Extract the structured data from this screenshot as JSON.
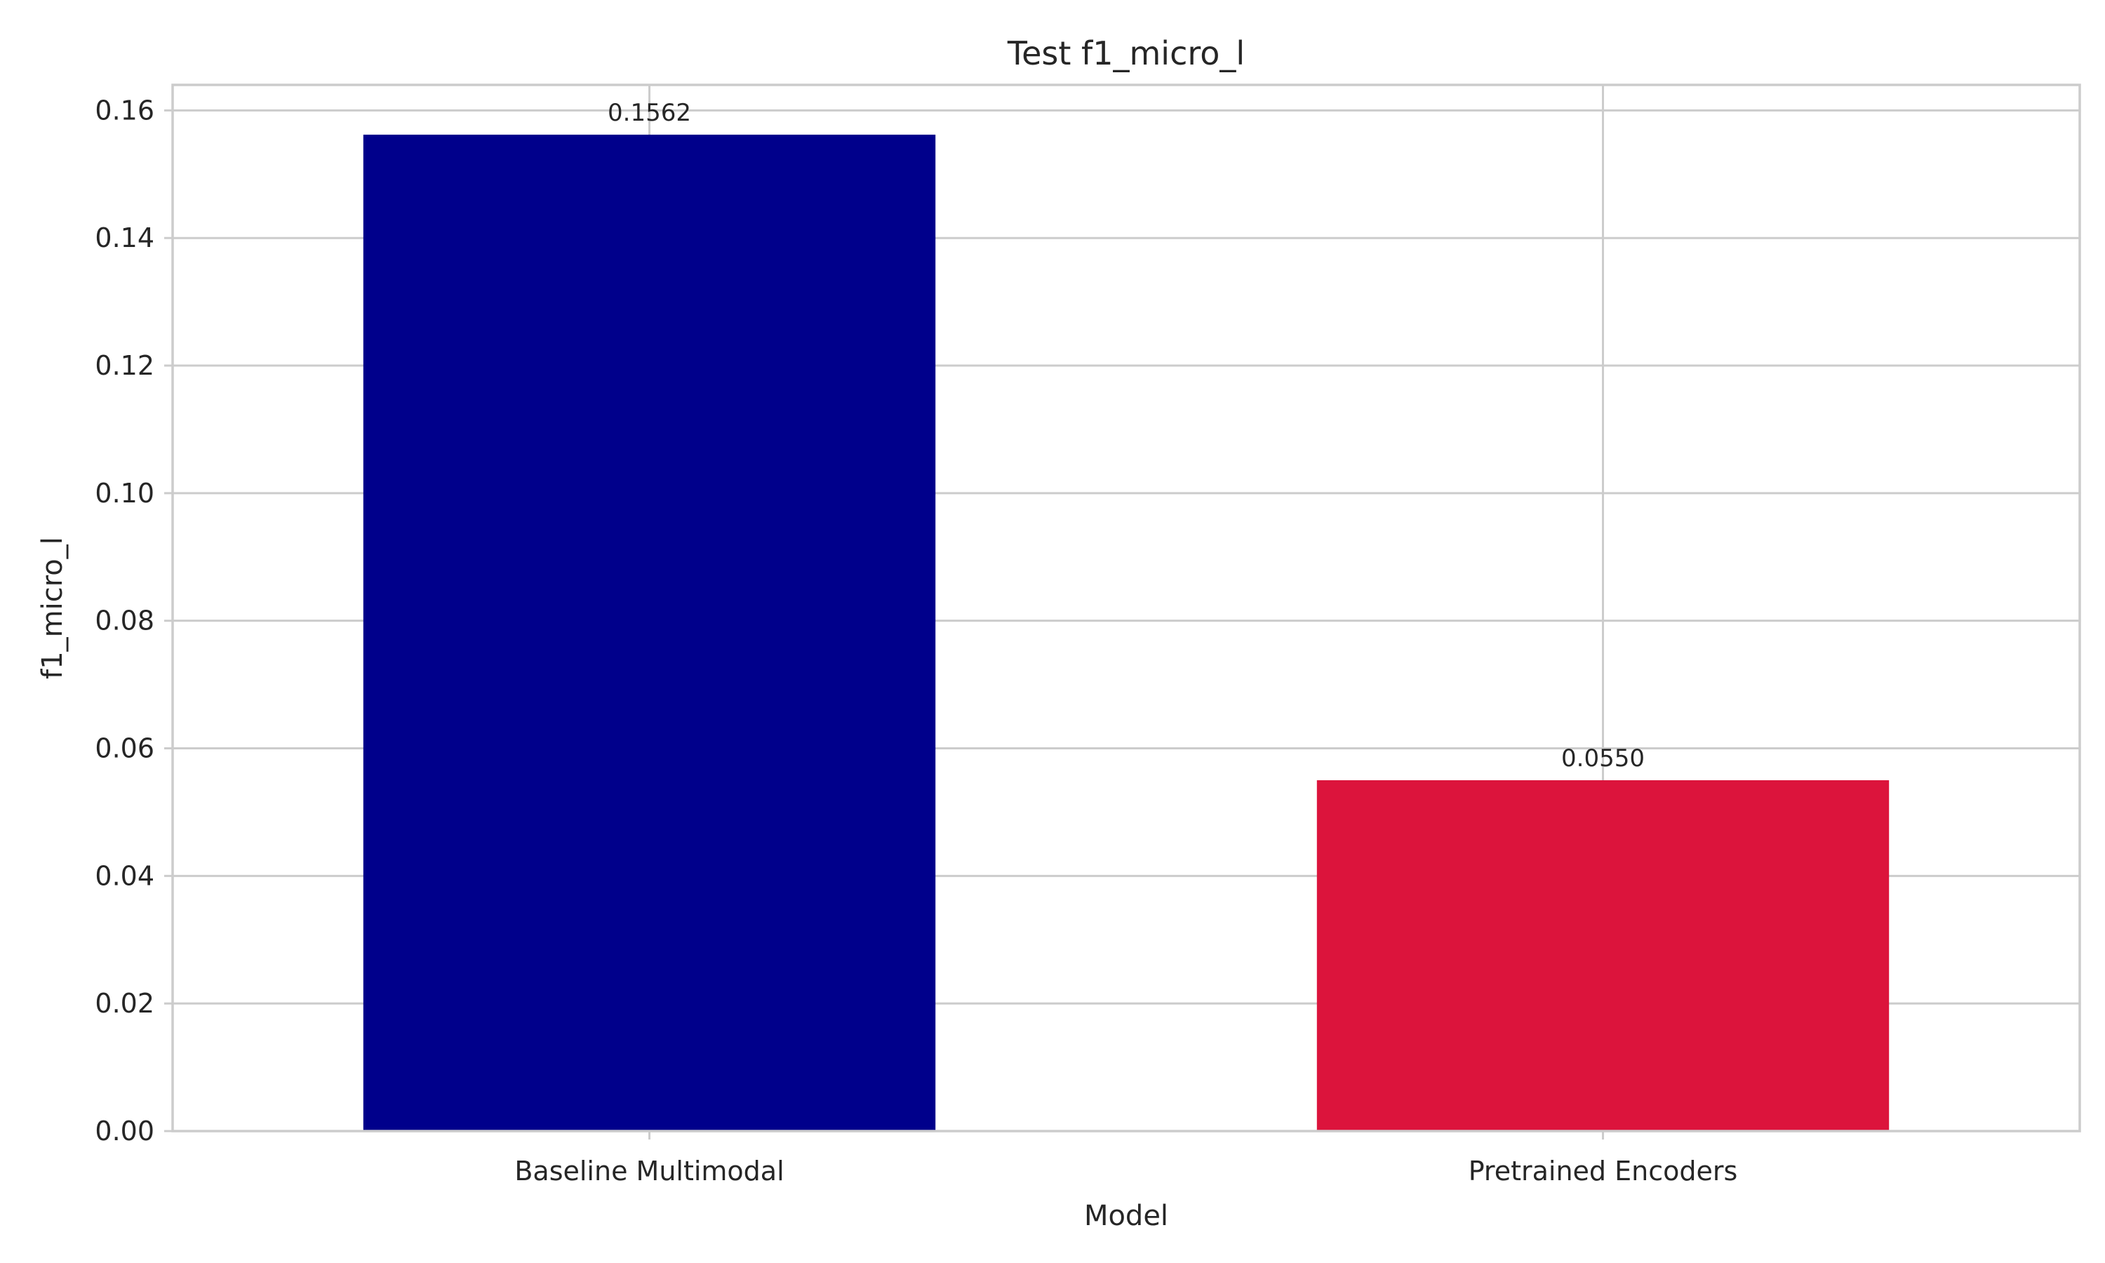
{
  "chart_data": {
    "type": "bar",
    "title": "Test f1_micro_l",
    "xlabel": "Model",
    "ylabel": "f1_micro_l",
    "categories": [
      "Baseline Multimodal",
      "Pretrained Encoders"
    ],
    "values": [
      0.1562,
      0.055
    ],
    "data_labels": [
      "0.1562",
      "0.0550"
    ],
    "colors": [
      "#00008b",
      "#dc143c"
    ],
    "ylim": [
      0,
      0.164
    ],
    "yticks": [
      0,
      0.02,
      0.04,
      0.06,
      0.08,
      0.1,
      0.12,
      0.14,
      0.16
    ],
    "ytick_labels": [
      "0.00",
      "0.02",
      "0.04",
      "0.06",
      "0.08",
      "0.10",
      "0.12",
      "0.14",
      "0.16"
    ],
    "grid": true,
    "legend": "none"
  }
}
